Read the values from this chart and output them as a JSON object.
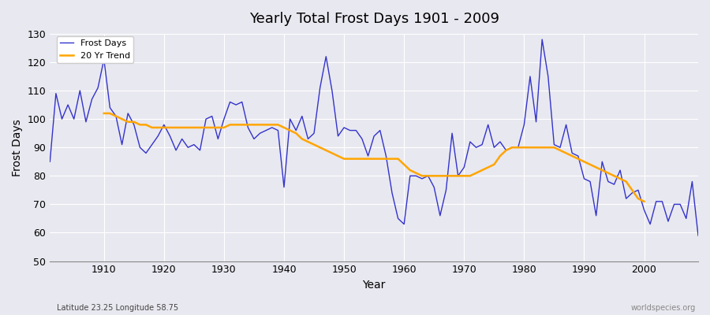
{
  "title": "Yearly Total Frost Days 1901 - 2009",
  "xlabel": "Year",
  "ylabel": "Frost Days",
  "subtitle_left": "Latitude 23.25 Longitude 58.75",
  "subtitle_right": "worldspecies.org",
  "line_color": "#3333cc",
  "trend_color": "#FFA500",
  "bg_color": "#e8e8f0",
  "ylim": [
    50,
    130
  ],
  "yticks": [
    50,
    60,
    70,
    80,
    90,
    100,
    110,
    120,
    130
  ],
  "xticks": [
    1910,
    1920,
    1930,
    1940,
    1950,
    1960,
    1970,
    1980,
    1990,
    2000
  ],
  "years": [
    1901,
    1902,
    1903,
    1904,
    1905,
    1906,
    1907,
    1908,
    1909,
    1910,
    1911,
    1912,
    1913,
    1914,
    1915,
    1916,
    1917,
    1918,
    1919,
    1920,
    1921,
    1922,
    1923,
    1924,
    1925,
    1926,
    1927,
    1928,
    1929,
    1930,
    1931,
    1932,
    1933,
    1934,
    1935,
    1936,
    1937,
    1938,
    1939,
    1940,
    1941,
    1942,
    1943,
    1944,
    1945,
    1946,
    1947,
    1948,
    1949,
    1950,
    1951,
    1952,
    1953,
    1954,
    1955,
    1956,
    1957,
    1958,
    1959,
    1960,
    1961,
    1962,
    1963,
    1964,
    1965,
    1966,
    1967,
    1968,
    1969,
    1970,
    1971,
    1972,
    1973,
    1974,
    1975,
    1976,
    1977,
    1978,
    1979,
    1980,
    1981,
    1982,
    1983,
    1984,
    1985,
    1986,
    1987,
    1988,
    1989,
    1990,
    1991,
    1992,
    1993,
    1994,
    1995,
    1996,
    1997,
    1998,
    1999,
    2000,
    2001,
    2002,
    2003,
    2004,
    2005,
    2006,
    2007,
    2008,
    2009
  ],
  "frost_days": [
    85,
    109,
    100,
    105,
    100,
    110,
    99,
    107,
    111,
    121,
    104,
    101,
    91,
    102,
    98,
    90,
    88,
    91,
    94,
    98,
    94,
    89,
    93,
    90,
    91,
    89,
    100,
    101,
    93,
    100,
    106,
    105,
    106,
    97,
    93,
    95,
    96,
    97,
    96,
    76,
    100,
    96,
    101,
    93,
    95,
    111,
    122,
    110,
    94,
    97,
    96,
    96,
    93,
    87,
    94,
    96,
    87,
    74,
    65,
    63,
    80,
    80,
    79,
    80,
    76,
    66,
    75,
    95,
    80,
    83,
    92,
    90,
    91,
    98,
    90,
    92,
    89,
    90,
    90,
    98,
    115,
    99,
    128,
    115,
    91,
    90,
    98,
    88,
    87,
    79,
    78,
    66,
    85,
    78,
    77,
    82,
    72,
    74,
    75,
    68,
    63,
    71,
    71,
    64,
    70,
    70,
    65,
    78,
    59
  ],
  "trend_years": [
    1910,
    1911,
    1912,
    1913,
    1914,
    1915,
    1916,
    1917,
    1918,
    1919,
    1920,
    1921,
    1922,
    1923,
    1924,
    1925,
    1926,
    1927,
    1928,
    1929,
    1930,
    1931,
    1932,
    1933,
    1934,
    1935,
    1936,
    1937,
    1938,
    1939,
    1940,
    1941,
    1942,
    1943,
    1944,
    1945,
    1946,
    1947,
    1948,
    1949,
    1950,
    1951,
    1952,
    1953,
    1954,
    1955,
    1956,
    1957,
    1958,
    1959,
    1960,
    1961,
    1962,
    1963,
    1964,
    1965,
    1966,
    1967,
    1968,
    1969,
    1970,
    1971,
    1972,
    1973,
    1974,
    1975,
    1976,
    1977,
    1978,
    1979,
    1980,
    1981,
    1982,
    1983,
    1984,
    1985,
    1986,
    1987,
    1988,
    1989,
    1990,
    1991,
    1992,
    1993,
    1994,
    1995,
    1996,
    1997,
    1998,
    1999,
    2000
  ],
  "trend_values": [
    102,
    102,
    101,
    100,
    99,
    99,
    98,
    98,
    97,
    97,
    97,
    97,
    97,
    97,
    97,
    97,
    97,
    97,
    97,
    97,
    97,
    98,
    98,
    98,
    98,
    98,
    98,
    98,
    98,
    98,
    97,
    96,
    95,
    93,
    92,
    91,
    90,
    89,
    88,
    87,
    86,
    86,
    86,
    86,
    86,
    86,
    86,
    86,
    86,
    86,
    84,
    82,
    81,
    80,
    80,
    80,
    80,
    80,
    80,
    80,
    80,
    80,
    81,
    82,
    83,
    84,
    87,
    89,
    90,
    90,
    90,
    90,
    90,
    90,
    90,
    90,
    89,
    88,
    87,
    86,
    85,
    84,
    83,
    82,
    81,
    80,
    79,
    78,
    75,
    72,
    71
  ]
}
